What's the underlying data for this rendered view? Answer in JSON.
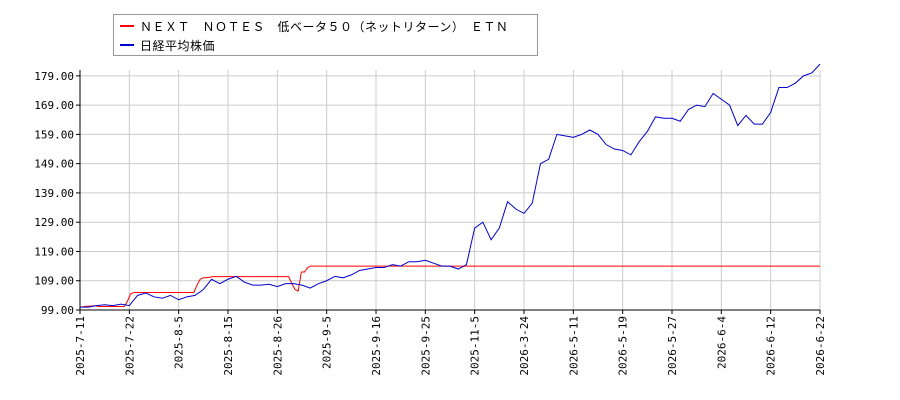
{
  "colors": {
    "series_0": "#ff0000",
    "series_1": "#0000cc",
    "grid": "#cccccc",
    "axis": "#000000"
  },
  "chart_data": {
    "type": "line",
    "title": "",
    "xlabel": "",
    "ylabel": "",
    "legend_position": "top-left",
    "grid": true,
    "ylim": [
      99,
      181
    ],
    "y_ticks": [
      "99.00",
      "109.00",
      "119.00",
      "129.00",
      "139.00",
      "149.00",
      "159.00",
      "169.00",
      "179.00"
    ],
    "x_ticks": [
      "2025-7-11",
      "2025-7-22",
      "2025-8-5",
      "2025-8-15",
      "2025-8-26",
      "2025-9-5",
      "2025-9-16",
      "2025-9-25",
      "2025-11-5",
      "2026-3-24",
      "2026-5-11",
      "2026-5-19",
      "2026-5-27",
      "2026-6-4",
      "2026-6-12",
      "2026-6-22"
    ],
    "series": [
      {
        "name": "ＮＥＸＴ　ＮＯＴＥＳ　低ベータ５０（ネットリターン）　ＥＴＮ",
        "values": [
          100,
          100.1,
          100.3,
          100.3,
          100.4,
          100.4,
          100.2,
          100.2,
          100.2,
          100.2,
          100.2,
          100.2,
          100.2,
          100.2,
          100.2,
          102,
          104.5,
          105,
          105,
          105,
          105,
          105,
          105,
          105,
          105,
          105,
          105,
          105,
          105,
          105,
          105,
          105,
          105,
          105,
          105,
          105,
          105,
          107.5,
          109.5,
          110,
          110,
          110.2,
          110.4,
          110.4,
          110.4,
          110.4,
          110.4,
          110.4,
          110.4,
          110.4,
          110.4,
          110.4,
          110.4,
          110.4,
          110.4,
          110.4,
          110.4,
          110.4,
          110.4,
          110.4,
          110.4,
          110.4,
          110.4,
          110.4,
          110.4,
          110.4,
          110.4,
          108,
          106,
          105.5,
          112,
          112,
          113.5,
          114,
          114,
          114,
          114,
          114,
          114,
          114,
          114,
          114,
          114,
          114,
          114,
          114,
          114,
          114,
          114,
          114,
          114,
          114,
          114,
          114,
          114,
          114,
          114,
          114,
          114,
          114,
          114,
          114,
          114,
          114,
          114,
          114,
          114,
          114,
          114,
          114,
          114,
          114,
          114,
          114,
          114,
          114,
          114,
          114,
          114,
          114,
          114,
          114,
          114,
          114,
          114,
          114,
          114,
          114,
          114,
          114,
          114,
          114,
          114,
          114,
          114,
          114,
          114,
          114,
          114,
          114,
          114,
          114,
          114,
          114,
          114,
          114,
          114,
          114,
          114,
          114,
          114,
          114,
          114,
          114,
          114,
          114,
          114,
          114,
          114,
          114,
          114,
          114,
          114,
          114,
          114,
          114,
          114,
          114,
          114,
          114,
          114,
          114,
          114,
          114,
          114,
          114,
          114,
          114,
          114,
          114,
          114,
          114,
          114,
          114,
          114,
          114,
          114,
          114,
          114,
          114,
          114,
          114,
          114,
          114,
          114,
          114,
          114,
          114,
          114,
          114,
          114,
          114,
          114,
          114,
          114,
          114,
          114,
          114,
          114,
          114,
          114,
          114,
          114,
          114,
          114,
          114,
          114,
          114,
          114,
          114,
          114,
          114,
          114,
          114,
          114,
          114,
          114,
          114,
          114,
          114,
          114,
          114,
          114,
          114,
          114
        ]
      },
      {
        "name": "日経平均株価",
        "values": [
          100,
          100,
          100.5,
          100.8,
          100.5,
          101,
          100.5,
          104,
          104.8,
          103.5,
          103,
          104,
          102.5,
          103.5,
          104,
          106,
          109.5,
          108,
          109.5,
          110.5,
          108.5,
          107.5,
          107.5,
          107.8,
          107,
          108,
          108,
          107.5,
          106.5,
          108,
          109,
          110.5,
          110,
          111,
          112.5,
          113,
          113.5,
          113.5,
          114.5,
          114,
          115.5,
          115.5,
          116,
          115,
          114,
          114,
          113,
          114.5,
          127,
          129,
          123,
          127,
          136,
          133.5,
          132,
          135.5,
          149,
          150.5,
          159,
          158.5,
          158,
          159,
          160.5,
          159,
          155.5,
          154,
          153.5,
          152,
          156.5,
          160,
          165,
          164.5,
          164.5,
          163.5,
          167.5,
          169,
          168.5,
          173,
          171,
          169,
          162,
          165.5,
          162.5,
          162.5,
          166.5,
          175,
          175,
          176.5,
          179,
          180,
          183
        ]
      }
    ]
  }
}
